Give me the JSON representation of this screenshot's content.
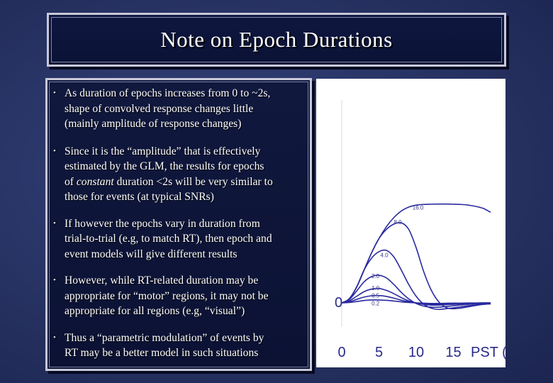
{
  "title": "Note on Epoch Durations",
  "bullets": [
    {
      "lines": [
        "As duration of epochs increases from 0 to ~2s,",
        "shape of convolved response changes little",
        "(mainly amplitude of response changes)"
      ]
    },
    {
      "lines": [
        "Since it is the “amplitude” that is effectively",
        "estimated by the GLM, the results for epochs"
      ],
      "line3_pre": "of ",
      "line3_em": "constant",
      "line3_post": " duration <2s will be very similar to",
      "line4": "those for events (at typical SNRs)"
    },
    {
      "lines": [
        "If however the epochs vary in duration from",
        "trial-to-trial (e.g, to match RT), then epoch and",
        "event models will give different results"
      ]
    },
    {
      "lines": [
        "However, while RT-related duration may be",
        "appropriate for “motor” regions, it may not be",
        "appropriate for all regions (e.g, “visual”)"
      ]
    },
    {
      "lines": [
        "Thus a “parametric modulation” of events by",
        "RT may be a better model in such situations"
      ]
    }
  ],
  "chart_data": {
    "type": "line",
    "xlabel": "PST (s)",
    "x_ticks": [
      "0",
      "5",
      "10",
      "15"
    ],
    "y_tick": "0",
    "xlim": [
      0,
      20
    ],
    "series": [
      {
        "name": "16.0",
        "x": [
          0,
          1,
          2,
          3,
          4,
          5,
          6,
          7,
          8,
          9,
          10,
          11,
          12,
          13,
          14,
          15,
          16,
          17,
          18,
          19,
          20
        ],
        "y": [
          0,
          0.3,
          1.2,
          2.5,
          3.8,
          4.9,
          5.8,
          6.5,
          7.0,
          7.3,
          7.45,
          7.5,
          7.52,
          7.53,
          7.53,
          7.52,
          7.5,
          7.45,
          7.35,
          7.2,
          6.9
        ]
      },
      {
        "name": "8.0",
        "x": [
          0,
          1,
          2,
          3,
          4,
          5,
          6,
          7,
          8,
          9,
          10,
          11,
          12,
          13,
          14,
          15,
          16,
          17,
          18,
          19,
          20
        ],
        "y": [
          0,
          0.3,
          1.2,
          2.5,
          3.8,
          4.9,
          5.6,
          6.0,
          6.1,
          5.6,
          4.2,
          2.4,
          1.0,
          0.1,
          -0.35,
          -0.45,
          -0.4,
          -0.3,
          -0.2,
          -0.12,
          -0.08
        ]
      },
      {
        "name": "4.0",
        "x": [
          0,
          1,
          2,
          3,
          4,
          5,
          6,
          7,
          8,
          9,
          10,
          11,
          12,
          13,
          14,
          15,
          16,
          17,
          18,
          19,
          20
        ],
        "y": [
          0,
          0.3,
          1.2,
          2.5,
          3.4,
          3.9,
          4.0,
          3.5,
          2.5,
          1.4,
          0.5,
          -0.1,
          -0.4,
          -0.5,
          -0.45,
          -0.38,
          -0.3,
          -0.22,
          -0.15,
          -0.1,
          -0.07
        ]
      },
      {
        "name": "2.0",
        "x": [
          0,
          1,
          2,
          3,
          4,
          5,
          6,
          7,
          8,
          9,
          10,
          11,
          12,
          13,
          14,
          15,
          16,
          17,
          18,
          19,
          20
        ],
        "y": [
          0,
          0.25,
          0.9,
          1.6,
          2.0,
          2.1,
          1.9,
          1.4,
          0.8,
          0.3,
          -0.05,
          -0.25,
          -0.33,
          -0.33,
          -0.28,
          -0.22,
          -0.16,
          -0.11,
          -0.07,
          -0.05,
          -0.03
        ]
      },
      {
        "name": "1.0",
        "x": [
          0,
          1,
          2,
          3,
          4,
          5,
          6,
          7,
          8,
          9,
          10,
          11,
          12,
          13,
          14,
          15,
          16,
          17,
          18,
          19,
          20
        ],
        "y": [
          0,
          0.15,
          0.5,
          0.85,
          1.05,
          1.1,
          0.95,
          0.7,
          0.4,
          0.15,
          -0.02,
          -0.12,
          -0.17,
          -0.17,
          -0.14,
          -0.11,
          -0.08,
          -0.05,
          -0.03,
          -0.02,
          -0.01
        ]
      },
      {
        "name": "0.5",
        "x": [
          0,
          1,
          2,
          3,
          4,
          5,
          6,
          7,
          8,
          9,
          10,
          11,
          12,
          13,
          14,
          15,
          16,
          17,
          18,
          19,
          20
        ],
        "y": [
          0,
          0.08,
          0.26,
          0.44,
          0.54,
          0.56,
          0.49,
          0.36,
          0.2,
          0.08,
          -0.01,
          -0.06,
          -0.09,
          -0.09,
          -0.07,
          -0.06,
          -0.04,
          -0.03,
          -0.02,
          -0.01,
          0
        ]
      },
      {
        "name": "0.2",
        "x": [
          0,
          1,
          2,
          3,
          4,
          5,
          6,
          7,
          8,
          9,
          10,
          11,
          12,
          13,
          14,
          15,
          16,
          17,
          18,
          19,
          20
        ],
        "y": [
          0,
          0.03,
          0.1,
          0.18,
          0.22,
          0.22,
          0.19,
          0.14,
          0.08,
          0.03,
          0,
          -0.02,
          -0.04,
          -0.04,
          -0.03,
          -0.02,
          -0.02,
          -0.01,
          -0.01,
          0,
          0
        ]
      }
    ],
    "ylim": [
      -1,
      8
    ],
    "line_color": "#2a2aa0",
    "label_color": "#3a3a8a"
  }
}
